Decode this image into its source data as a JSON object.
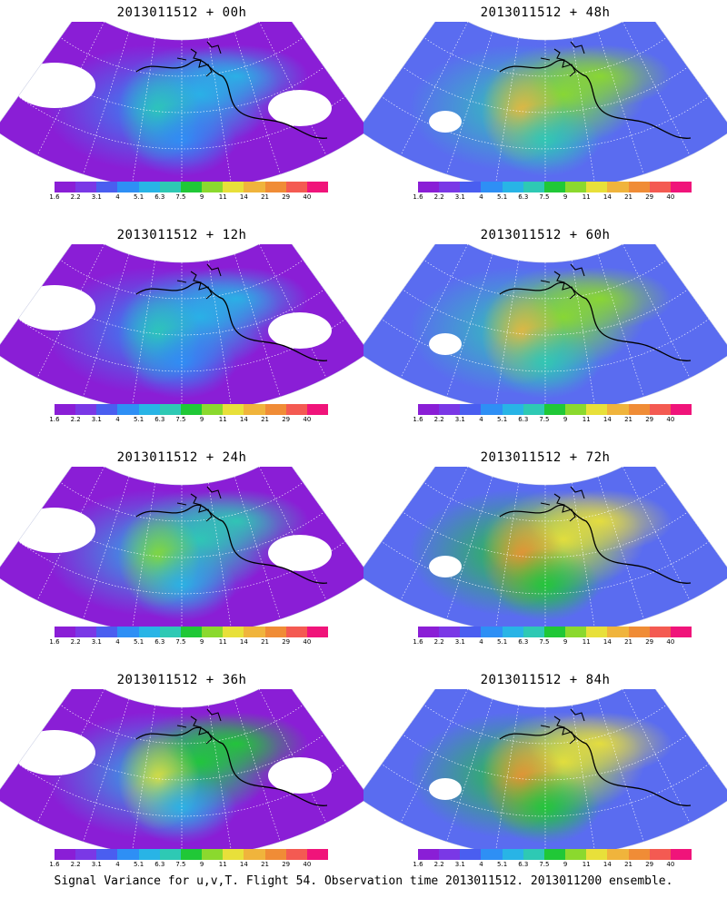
{
  "panels": [
    {
      "title": "2013011512 + 00h",
      "intensity": 0.55
    },
    {
      "title": "2013011512 + 12h",
      "intensity": 0.6
    },
    {
      "title": "2013011512 + 24h",
      "intensity": 0.75
    },
    {
      "title": "2013011512 + 36h",
      "intensity": 0.85
    },
    {
      "title": "2013011512 + 48h",
      "intensity": 1.0
    },
    {
      "title": "2013011512 + 60h",
      "intensity": 1.05
    },
    {
      "title": "2013011512 + 72h",
      "intensity": 1.1
    },
    {
      "title": "2013011512 + 84h",
      "intensity": 1.1
    }
  ],
  "colorbar": {
    "labels": [
      "1.6",
      "2.2",
      "3.1",
      "4",
      "5.1",
      "6.3",
      "7.5",
      "9",
      "11",
      "14",
      "21",
      "29",
      "40"
    ],
    "colors": [
      "#8a1ed6",
      "#7a38e6",
      "#4a5ef0",
      "#2e8ff5",
      "#28b4e6",
      "#2ec9b4",
      "#20c837",
      "#8bd92e",
      "#e8e03a",
      "#f0b43c",
      "#f08c36",
      "#f45a52",
      "#f0147a"
    ]
  },
  "footer": "Signal Variance for u,v,T. Flight 54. Observation time 2013011512. 2013011200 ensemble."
}
